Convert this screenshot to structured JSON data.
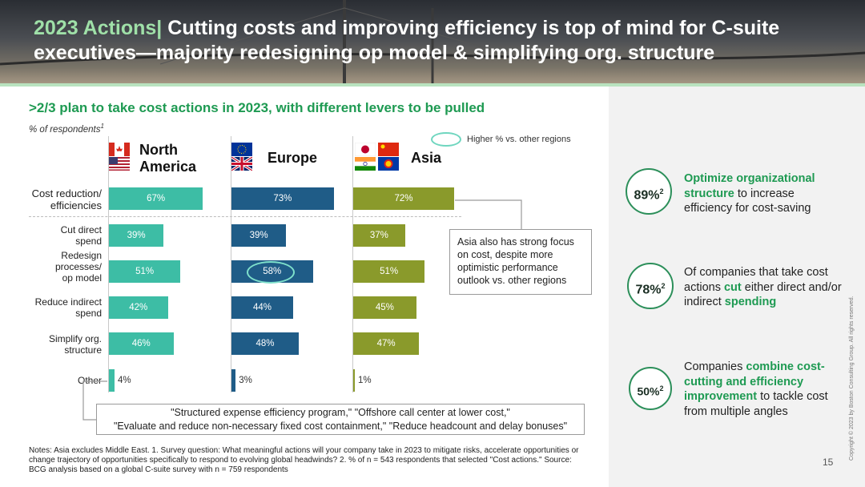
{
  "header": {
    "title_accent": "2023 Actions|",
    "title_rest": " Cutting costs and improving efficiency is top of mind for C-suite executives—majority redesigning op model & simplifying org. structure"
  },
  "subtitle": ">2/3 plan to take cost actions in 2023, with different levers to be pulled",
  "unit": "% of respondents",
  "unit_sup": "1",
  "legend": {
    "text": "Higher % vs. other regions"
  },
  "regions": {
    "north_america": "North America",
    "europe": "Europe",
    "asia": "Asia"
  },
  "callout": "Asia also has strong focus on cost, despite more optimistic performance outlook vs. other regions",
  "quote_line1": "\"Structured expense efficiency program,\" \"Offshore call center at lower cost,\"",
  "quote_line2": "\"Evaluate and reduce non-necessary fixed cost containment,\" \"Reduce headcount and delay bonuses\"",
  "notes": "Notes: Asia excludes Middle East. 1. Survey question: What meaningful actions will your company take in 2023 to mitigate risks, accelerate opportunities or change trajectory of opportunities specifically to respond to evolving global headwinds? 2. % of n = 543 respondents that selected \"Cost actions.\" Source: BCG analysis based on a global C-suite survey with n = 759 respondents",
  "stats": [
    {
      "value": "89%",
      "sup": "2",
      "pre": "",
      "hl1": "Optimize organizational structure",
      "mid": " to increase efficiency for cost-saving",
      "hl2": "",
      "post": ""
    },
    {
      "value": "78%",
      "sup": "2",
      "pre": "Of companies that take cost actions ",
      "hl1": "cut",
      "mid": " either direct and/or indirect ",
      "hl2": "spending",
      "post": ""
    },
    {
      "value": "50%",
      "sup": "2",
      "pre": "Companies ",
      "hl1": "combine cost-cutting and efficiency improvement",
      "mid": " to tackle cost from multiple angles",
      "hl2": "",
      "post": ""
    }
  ],
  "copyright": "Copyright © 2023 by Boston Consulting Group. All rights reserved.",
  "page_number": "15",
  "colors": {
    "north_america": "#3dbda5",
    "europe": "#1f5c87",
    "asia": "#8a9a2b",
    "accent": "#1e9a52"
  },
  "chart_data": {
    "type": "bar",
    "orientation": "horizontal",
    "title": ">2/3 plan to take cost actions in 2023, with different levers to be pulled",
    "ylabel": "% of respondents",
    "categories": [
      "Cost reduction/ efficiencies",
      "Cut direct spend",
      "Redesign processes/ op model",
      "Reduce indirect spend",
      "Simplify org. structure",
      "Other"
    ],
    "series": [
      {
        "name": "North America",
        "values": [
          67,
          39,
          51,
          42,
          46,
          4
        ]
      },
      {
        "name": "Europe",
        "values": [
          73,
          39,
          58,
          44,
          48,
          3
        ]
      },
      {
        "name": "Asia",
        "values": [
          72,
          37,
          51,
          45,
          47,
          1
        ]
      }
    ],
    "value_labels": [
      [
        "67%",
        "39%",
        "51%",
        "42%",
        "46%",
        "4%"
      ],
      [
        "73%",
        "39%",
        "58%",
        "44%",
        "48%",
        "3%"
      ],
      [
        "72%",
        "37%",
        "51%",
        "45%",
        "47%",
        "1%"
      ]
    ],
    "highlighted": [
      {
        "series": "Europe",
        "category": "Redesign processes/ op model"
      }
    ],
    "legend": "Higher % vs. other regions"
  }
}
